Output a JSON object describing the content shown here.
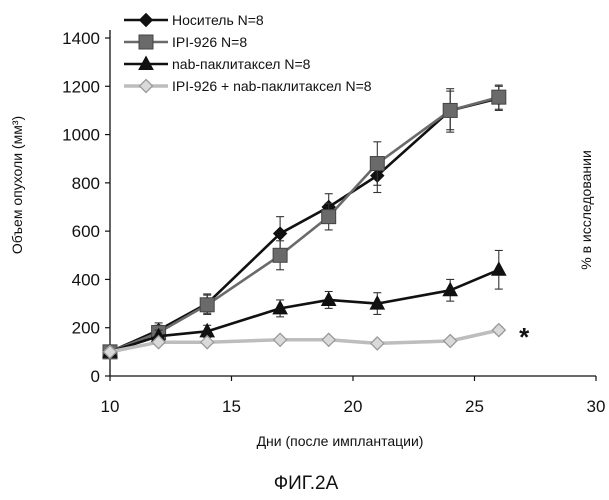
{
  "chart_data": {
    "type": "line",
    "xlabel": "Дни (после имплантации)",
    "ylabel": "Объем опухоли (мм³)",
    "ylabel_right": "% в исследовании",
    "xlim": [
      10,
      30
    ],
    "ylim": [
      0,
      1400
    ],
    "xticks": [
      10,
      15,
      20,
      25,
      30
    ],
    "yticks": [
      0,
      200,
      400,
      600,
      800,
      1000,
      1200,
      1400
    ],
    "grid": false,
    "legend_position": "top-left",
    "series": [
      {
        "name": "Носитель N=8",
        "marker": "diamond",
        "color": "#111111",
        "x": [
          10,
          12,
          14,
          17,
          19,
          21,
          24,
          26
        ],
        "y": [
          100,
          190,
          300,
          590,
          700,
          830,
          1100,
          1150
        ],
        "err": [
          10,
          30,
          40,
          70,
          55,
          70,
          80,
          50
        ]
      },
      {
        "name": "IPI-926 N=8",
        "marker": "square",
        "color": "#6a6a6a",
        "x": [
          10,
          12,
          14,
          17,
          19,
          21,
          24,
          26
        ],
        "y": [
          100,
          180,
          295,
          500,
          660,
          880,
          1100,
          1155
        ],
        "err": [
          10,
          30,
          40,
          60,
          55,
          90,
          90,
          50
        ]
      },
      {
        "name": "nab-паклитаксел N=8",
        "marker": "triangle",
        "color": "#111111",
        "x": [
          10,
          12,
          14,
          17,
          19,
          21,
          24,
          26
        ],
        "y": [
          100,
          165,
          185,
          280,
          315,
          300,
          355,
          440
        ],
        "err": [
          10,
          25,
          25,
          35,
          35,
          45,
          45,
          80
        ]
      },
      {
        "name": "IPI-926 + nab-паклитаксел N=8",
        "marker": "diamond-open",
        "color": "#bdbdbd",
        "x": [
          10,
          12,
          14,
          17,
          19,
          21,
          24,
          26
        ],
        "y": [
          100,
          140,
          140,
          150,
          150,
          135,
          145,
          190
        ],
        "err": [
          5,
          10,
          10,
          10,
          10,
          10,
          10,
          15
        ]
      }
    ],
    "annotations": [
      {
        "text": "*",
        "x": 27,
        "y": 190
      }
    ]
  },
  "caption": "ФИГ.2А"
}
